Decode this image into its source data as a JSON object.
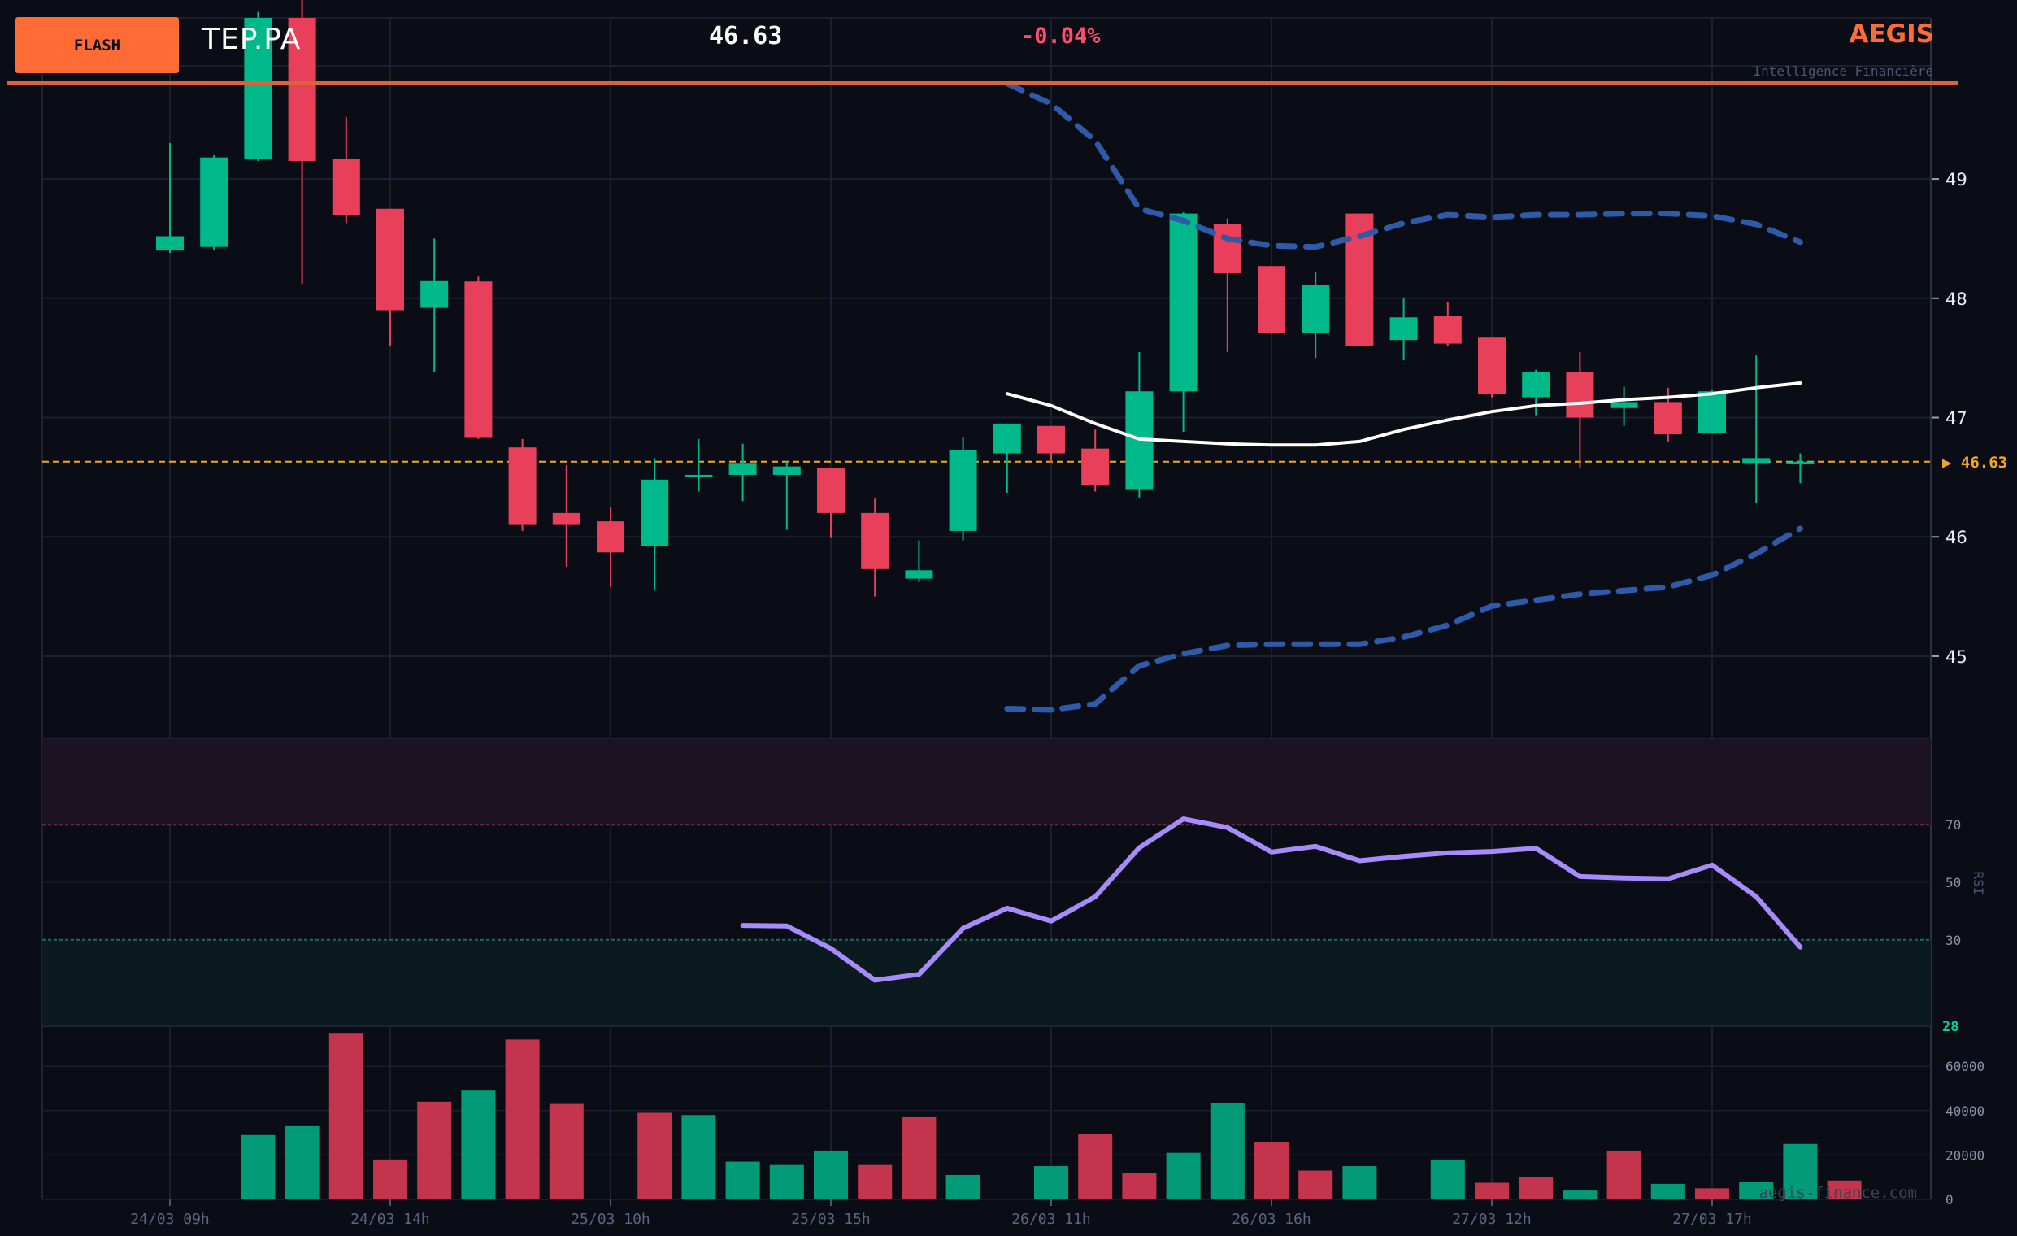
{
  "header": {
    "badge": "FLASH",
    "ticker": "TEP.PA",
    "price": "46.63",
    "change": "-0.04%",
    "brand": "AEGIS",
    "tagline": "Intelligence Financière",
    "watermark": "aegis-finance.com"
  },
  "colors": {
    "background": "#0b0d16",
    "up": "#00b98a",
    "down": "#e8405a",
    "accent": "#ff6b35",
    "bollinger": "#2f5aa8",
    "ma": "#ffffff",
    "rsi": "#a78bfa",
    "last_price": "#f5a623",
    "grid": "#1a2030"
  },
  "chart_data": [
    {
      "type": "candlestick",
      "name": "price",
      "x_tick_labels": [
        "24/03 09h",
        "24/03 14h",
        "25/03 10h",
        "25/03 15h",
        "26/03 11h",
        "26/03 16h",
        "27/03 12h",
        "27/03 17h"
      ],
      "x_tick_index": [
        0,
        5,
        10,
        15,
        20,
        25,
        30,
        35
      ],
      "y_ticks": [
        45,
        46,
        47,
        48,
        49
      ],
      "ylim": [
        44.4,
        50.35
      ],
      "last_price": 46.63,
      "last_price_label": "▶ 46.63",
      "candles": [
        {
          "o": 48.4,
          "h": 49.3,
          "l": 48.38,
          "c": 48.52
        },
        {
          "o": 48.43,
          "h": 49.2,
          "l": 48.4,
          "c": 49.18
        },
        {
          "o": 49.17,
          "h": 50.4,
          "l": 49.15,
          "c": 50.35
        },
        {
          "o": 50.35,
          "h": 50.5,
          "l": 48.12,
          "c": 49.15
        },
        {
          "o": 49.17,
          "h": 49.52,
          "l": 48.63,
          "c": 48.7
        },
        {
          "o": 48.75,
          "h": 48.75,
          "l": 47.6,
          "c": 47.9
        },
        {
          "o": 47.92,
          "h": 48.5,
          "l": 47.38,
          "c": 48.15
        },
        {
          "o": 48.14,
          "h": 48.18,
          "l": 46.82,
          "c": 46.83
        },
        {
          "o": 46.75,
          "h": 46.82,
          "l": 46.05,
          "c": 46.1
        },
        {
          "o": 46.2,
          "h": 46.6,
          "l": 45.75,
          "c": 46.1
        },
        {
          "o": 46.13,
          "h": 46.25,
          "l": 45.58,
          "c": 45.87
        },
        {
          "o": 45.92,
          "h": 46.66,
          "l": 45.55,
          "c": 46.48
        },
        {
          "o": 46.5,
          "h": 46.82,
          "l": 46.38,
          "c": 46.52
        },
        {
          "o": 46.52,
          "h": 46.78,
          "l": 46.3,
          "c": 46.62
        },
        {
          "o": 46.52,
          "h": 46.63,
          "l": 46.06,
          "c": 46.59
        },
        {
          "o": 46.58,
          "h": 46.58,
          "l": 45.99,
          "c": 46.2
        },
        {
          "o": 46.2,
          "h": 46.32,
          "l": 45.5,
          "c": 45.73
        },
        {
          "o": 45.65,
          "h": 45.97,
          "l": 45.62,
          "c": 45.72
        },
        {
          "o": 46.05,
          "h": 46.84,
          "l": 45.97,
          "c": 46.73
        },
        {
          "o": 46.7,
          "h": 46.95,
          "l": 46.37,
          "c": 46.95
        },
        {
          "o": 46.93,
          "h": 46.93,
          "l": 46.63,
          "c": 46.7
        },
        {
          "o": 46.74,
          "h": 46.9,
          "l": 46.38,
          "c": 46.43
        },
        {
          "o": 46.4,
          "h": 47.55,
          "l": 46.33,
          "c": 47.22
        },
        {
          "o": 47.22,
          "h": 48.72,
          "l": 46.88,
          "c": 48.71
        },
        {
          "o": 48.62,
          "h": 48.67,
          "l": 47.55,
          "c": 48.21
        },
        {
          "o": 48.27,
          "h": 48.27,
          "l": 47.7,
          "c": 47.71
        },
        {
          "o": 47.71,
          "h": 48.22,
          "l": 47.5,
          "c": 48.11
        },
        {
          "o": 48.71,
          "h": 48.71,
          "l": 47.6,
          "c": 47.6
        },
        {
          "o": 47.65,
          "h": 48.0,
          "l": 47.48,
          "c": 47.84
        },
        {
          "o": 47.85,
          "h": 47.97,
          "l": 47.6,
          "c": 47.62
        },
        {
          "o": 47.67,
          "h": 47.67,
          "l": 47.17,
          "c": 47.2
        },
        {
          "o": 47.17,
          "h": 47.4,
          "l": 47.02,
          "c": 47.38
        },
        {
          "o": 47.38,
          "h": 47.55,
          "l": 46.58,
          "c": 47.0
        },
        {
          "o": 47.08,
          "h": 47.26,
          "l": 46.93,
          "c": 47.13
        },
        {
          "o": 47.13,
          "h": 47.25,
          "l": 46.8,
          "c": 46.86
        },
        {
          "o": 46.87,
          "h": 47.23,
          "l": 46.87,
          "c": 47.22
        },
        {
          "o": 46.62,
          "h": 47.52,
          "l": 46.28,
          "c": 46.66
        },
        {
          "o": 46.63,
          "h": 46.7,
          "l": 46.45,
          "c": 46.63
        }
      ],
      "bollinger_upper": {
        "start_index": 19,
        "values": [
          49.8,
          49.63,
          49.32,
          48.75,
          48.65,
          48.5,
          48.44,
          48.43,
          48.52,
          48.63,
          48.7,
          48.68,
          48.7,
          48.7,
          48.71,
          48.71,
          48.69,
          48.62,
          48.47
        ]
      },
      "bollinger_lower": {
        "start_index": 19,
        "values": [
          44.56,
          44.55,
          44.6,
          44.92,
          45.02,
          45.09,
          45.1,
          45.1,
          45.1,
          45.16,
          45.26,
          45.42,
          45.47,
          45.52,
          45.55,
          45.58,
          45.68,
          45.86,
          46.07
        ]
      },
      "moving_average": {
        "start_index": 19,
        "values": [
          47.2,
          47.1,
          46.95,
          46.82,
          46.8,
          46.78,
          46.77,
          46.77,
          46.8,
          46.9,
          46.98,
          47.05,
          47.1,
          47.12,
          47.15,
          47.17,
          47.2,
          47.25,
          47.29
        ]
      }
    },
    {
      "type": "line",
      "name": "RSI",
      "ylabel": "RSI",
      "y_ticks": [
        30,
        50,
        70
      ],
      "ylim": [
        0,
        100
      ],
      "overbought": 70,
      "oversold": 30,
      "last_value_label": "28",
      "start_index": 13,
      "values": [
        35,
        34.8,
        27,
        16,
        18,
        34,
        41,
        36.5,
        45,
        62,
        72,
        69,
        60.5,
        62.5,
        57.5,
        59,
        60.2,
        60.7,
        61.8,
        52,
        51.5,
        51.2,
        56,
        45,
        27.5
      ]
    },
    {
      "type": "bar",
      "name": "volume",
      "y_ticks": [
        0,
        20000,
        40000,
        60000
      ],
      "y_tick_labels": [
        "0",
        "20000",
        "40000",
        "60000"
      ],
      "ylim": [
        0,
        78000
      ],
      "values": [
        0,
        29000,
        33000,
        75000,
        18000,
        44000,
        49000,
        72000,
        43000,
        0,
        39000,
        38000,
        17000,
        15500,
        22000,
        15500,
        37000,
        11000,
        0,
        15000,
        29500,
        12000,
        21000,
        43500,
        26000,
        13000,
        15000,
        0,
        18000,
        7500,
        10000,
        4000,
        22000,
        7000,
        5000,
        8000,
        25000,
        8500
      ],
      "direction": [
        "up",
        "up",
        "up",
        "down",
        "down",
        "down",
        "up",
        "down",
        "down",
        "down",
        "down",
        "up",
        "up",
        "up",
        "up",
        "down",
        "down",
        "up",
        "up",
        "up",
        "down",
        "down",
        "up",
        "up",
        "down",
        "down",
        "up",
        "down",
        "up",
        "down",
        "down",
        "up",
        "down",
        "up",
        "down",
        "up",
        "up",
        "down"
      ]
    }
  ]
}
